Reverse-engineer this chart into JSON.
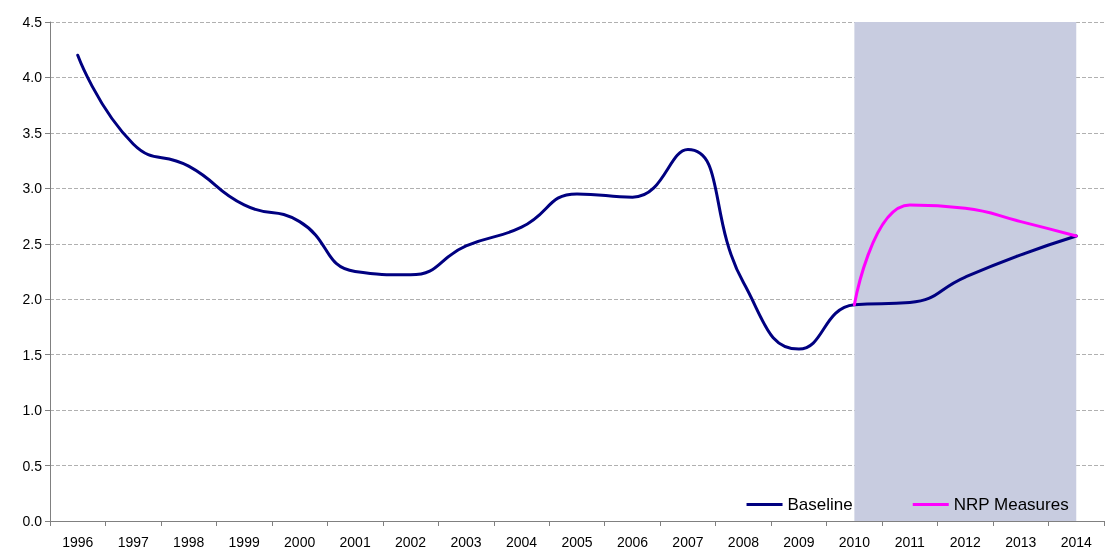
{
  "chart_data": {
    "type": "line",
    "categories": [
      "1996",
      "1997",
      "1998",
      "1999",
      "2000",
      "2001",
      "2002",
      "2003",
      "2004",
      "2005",
      "2006",
      "2007",
      "2008",
      "2009",
      "2010",
      "2011",
      "2012",
      "2013",
      "2014"
    ],
    "series": [
      {
        "name": "Baseline",
        "color": "#000080",
        "values": [
          4.2,
          3.4,
          3.2,
          2.85,
          2.7,
          2.25,
          2.22,
          2.48,
          2.65,
          2.95,
          2.92,
          3.35,
          2.15,
          1.55,
          1.95,
          1.97,
          2.2,
          2.4,
          2.57
        ]
      },
      {
        "name": "NRP Measures",
        "color": "#ff00ff",
        "values": [
          null,
          null,
          null,
          null,
          null,
          null,
          null,
          null,
          null,
          null,
          null,
          null,
          null,
          null,
          1.95,
          2.85,
          2.82,
          2.7,
          2.57
        ]
      }
    ],
    "ylim": [
      0,
      4.5
    ],
    "yticks": [
      {
        "value": 0,
        "label": "0.0"
      },
      {
        "value": 0.5,
        "label": "0.5"
      },
      {
        "value": 1,
        "label": "1.0"
      },
      {
        "value": 1.5,
        "label": "1.5"
      },
      {
        "value": 2,
        "label": "2.0"
      },
      {
        "value": 2.5,
        "label": "2.5"
      },
      {
        "value": 3,
        "label": "3.0"
      },
      {
        "value": 3.5,
        "label": "3.5"
      },
      {
        "value": 4,
        "label": "4.0"
      },
      {
        "value": 4.5,
        "label": "4.5"
      }
    ],
    "bands": [
      {
        "axis": "x",
        "from": "2010",
        "to": "2014",
        "color": "#c8cce0"
      }
    ],
    "grid": "y",
    "legend": "bottom right",
    "marker": "none",
    "line_style": "solid"
  }
}
